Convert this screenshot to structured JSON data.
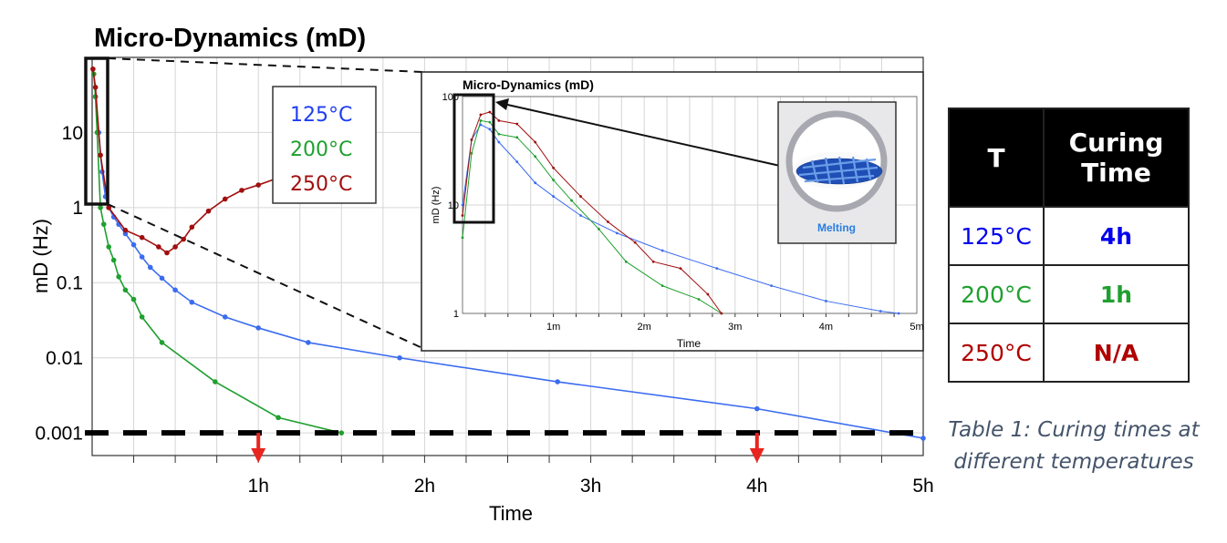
{
  "chart_data": [
    {
      "type": "line",
      "title": "Micro-Dynamics (mD)",
      "xlabel": "Time",
      "ylabel": "mD (Hz)",
      "yscale": "log",
      "ylim": [
        0.0005,
        100
      ],
      "xlim": [
        0,
        5
      ],
      "x_ticks": [
        "1h",
        "2h",
        "3h",
        "4h",
        "5h"
      ],
      "y_ticks": [
        "0.001",
        "0.01",
        "0.1",
        "1",
        "10"
      ],
      "legend": [
        "125°C",
        "200°C",
        "250°C"
      ],
      "legend_position": "top-center",
      "grid": true,
      "threshold": {
        "y": 0.001,
        "style": "dashed"
      },
      "markers": [
        {
          "x": 1,
          "color": "#e8251f"
        },
        {
          "x": 4,
          "color": "#e8251f"
        }
      ],
      "series": [
        {
          "name": "125°C",
          "color": "#3b6cf0",
          "x": [
            0.02,
            0.04,
            0.06,
            0.08,
            0.1,
            0.13,
            0.16,
            0.2,
            0.25,
            0.3,
            0.35,
            0.42,
            0.5,
            0.6,
            0.8,
            1.0,
            1.3,
            1.85,
            2.8,
            4.0,
            5.0
          ],
          "y": [
            30,
            10,
            3,
            1.4,
            1.0,
            0.75,
            0.6,
            0.45,
            0.32,
            0.22,
            0.16,
            0.115,
            0.08,
            0.055,
            0.035,
            0.025,
            0.016,
            0.01,
            0.0048,
            0.0021,
            0.00085
          ]
        },
        {
          "name": "200°C",
          "color": "#1fa02f",
          "x": [
            0.01,
            0.02,
            0.03,
            0.05,
            0.07,
            0.1,
            0.13,
            0.16,
            0.2,
            0.25,
            0.3,
            0.42,
            0.74,
            1.12,
            1.5
          ],
          "y": [
            60,
            30,
            10,
            1.0,
            0.6,
            0.3,
            0.2,
            0.12,
            0.08,
            0.06,
            0.035,
            0.016,
            0.0048,
            0.0016,
            0.001
          ]
        },
        {
          "name": "250°C",
          "color": "#a10f0f",
          "x": [
            0.005,
            0.02,
            0.05,
            0.1,
            0.2,
            0.3,
            0.4,
            0.45,
            0.5,
            0.55,
            0.6,
            0.7,
            0.8,
            0.9,
            1.0,
            1.1,
            1.2
          ],
          "y": [
            70,
            40,
            5,
            1.0,
            0.5,
            0.4,
            0.3,
            0.25,
            0.3,
            0.38,
            0.55,
            0.9,
            1.3,
            1.7,
            2.0,
            2.4,
            2.8
          ]
        }
      ]
    },
    {
      "type": "line",
      "title": "Micro-Dynamics (mD)",
      "xlabel": "Time",
      "ylabel": "mD (Hz)",
      "yscale": "log",
      "ylim": [
        1,
        100
      ],
      "xlim": [
        0,
        5
      ],
      "x_ticks": [
        "1m",
        "2m",
        "3m",
        "4m",
        "5m"
      ],
      "y_ticks": [
        "1",
        "10",
        "100"
      ],
      "image_label": "Melting",
      "series": [
        {
          "name": "",
          "color": "#3b6cf0",
          "x": [
            0.0,
            0.1,
            0.2,
            0.3,
            0.4,
            0.6,
            0.8,
            1.0,
            1.3,
            1.7,
            2.2,
            2.8,
            3.4,
            4.0,
            4.6,
            4.8
          ],
          "y": [
            10,
            40,
            55,
            50,
            38,
            25,
            16,
            12,
            8,
            5.5,
            3.8,
            2.6,
            1.8,
            1.3,
            1.05,
            1.0
          ]
        },
        {
          "name": "",
          "color": "#1fa02f",
          "x": [
            0.0,
            0.1,
            0.2,
            0.3,
            0.4,
            0.6,
            0.8,
            1.0,
            1.2,
            1.5,
            1.8,
            2.2,
            2.6,
            2.85
          ],
          "y": [
            5,
            30,
            60,
            58,
            45,
            42,
            28,
            17,
            11,
            6,
            3,
            1.8,
            1.35,
            1.0
          ]
        },
        {
          "name": "",
          "color": "#a10f0f",
          "x": [
            0.0,
            0.1,
            0.2,
            0.3,
            0.4,
            0.6,
            0.8,
            1.0,
            1.3,
            1.6,
            1.9,
            2.1,
            2.4,
            2.7,
            2.85
          ],
          "y": [
            8,
            40,
            68,
            72,
            60,
            56,
            38,
            22,
            12,
            7,
            4.5,
            3.0,
            2.6,
            1.5,
            1.0
          ]
        }
      ]
    }
  ],
  "table": {
    "headers": [
      "T",
      "Curing Time"
    ],
    "rows": [
      {
        "t": "125°C",
        "time": "4h",
        "color": "#0000ee"
      },
      {
        "t": "200°C",
        "time": "1h",
        "color": "#1fa02f"
      },
      {
        "t": "250°C",
        "time": "N/A",
        "color": "#b00000"
      }
    ]
  },
  "caption": "Table 1: Curing times at different temperatures"
}
